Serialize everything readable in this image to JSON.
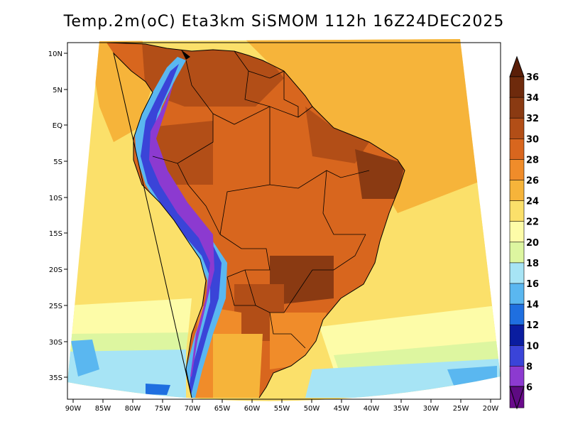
{
  "title": "Temp.2m(oC) Eta3km SiSMOM 112h 16Z24DEC2025",
  "lat_labels": [
    "10N",
    "5N",
    "EQ",
    "5S",
    "10S",
    "15S",
    "20S",
    "25S",
    "30S",
    "35S"
  ],
  "lon_labels": [
    "90W",
    "85W",
    "80W",
    "75W",
    "70W",
    "65W",
    "60W",
    "55W",
    "50W",
    "45W",
    "40W",
    "35W",
    "30W",
    "25W",
    "20W"
  ],
  "colorbar": {
    "labels": [
      "36",
      "34",
      "32",
      "30",
      "28",
      "26",
      "24",
      "22",
      "20",
      "18",
      "16",
      "14",
      "12",
      "10",
      "8",
      "6"
    ],
    "colors": [
      "#6e2a0c",
      "#8a3a12",
      "#b24e17",
      "#d8661e",
      "#f08c2a",
      "#f6b43a",
      "#fbe06a",
      "#fdfca8",
      "#ddf6a0",
      "#a7e4f5",
      "#5ab7f0",
      "#1f6fe0",
      "#0a1da0",
      "#3a44d8",
      "#8c3ad0",
      "#6a0a8c"
    ]
  },
  "legend_top_color": "#5a1e08",
  "legend_bottom_color": "#5e0a82"
}
